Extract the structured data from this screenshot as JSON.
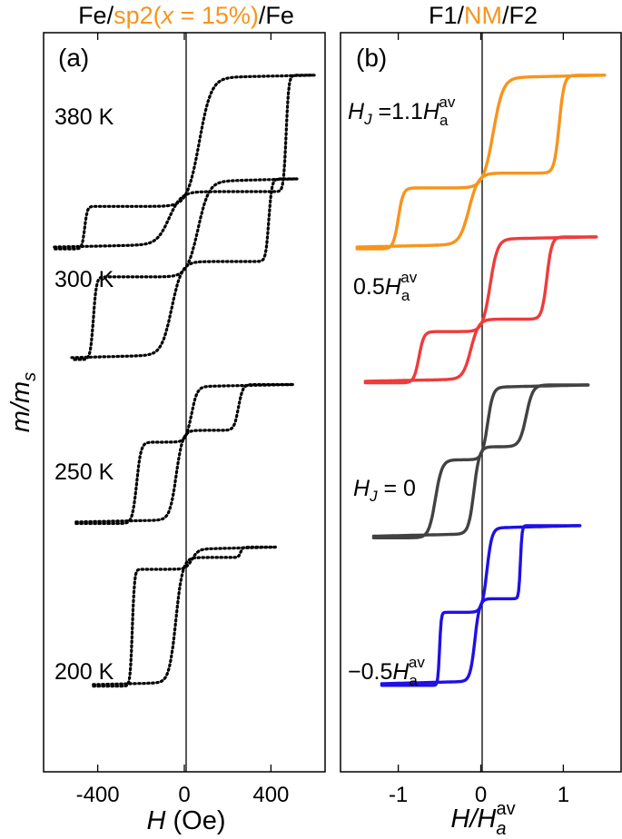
{
  "figure": {
    "ylabel_main": "m/m",
    "ylabel_sub": "s"
  },
  "chart_data": [
    {
      "type": "line",
      "panel_label": "(a)",
      "title_parts": [
        {
          "text": "Fe/",
          "color": "#000000"
        },
        {
          "text": "sp2(",
          "color": "#f7941d"
        },
        {
          "text": "x",
          "color": "#f7941d",
          "italic": true
        },
        {
          "text": " = 15%)",
          "color": "#f7941d"
        },
        {
          "text": "/Fe",
          "color": "#000000"
        }
      ],
      "xlabel_main": "H",
      "xlabel_rest": " (Oe)",
      "xlim": [
        -650,
        650
      ],
      "xticks": [
        -400,
        0,
        400
      ],
      "xtick_labels": [
        "-400",
        "0",
        "400"
      ],
      "grid": false,
      "line_style": "dotted",
      "line_color": "#000000",
      "series": [
        {
          "name": "380 K",
          "Hs": 600,
          "loop": [
            0.05,
            0.3
          ],
          "shift": 0.3,
          "branches": [
            {
              "H": 470,
              "lo": 0.18,
              "hi": 0.82,
              "w": 12
            },
            {
              "H": -460,
              "lo": 0.18,
              "hi": 0.82,
              "w": 12
            }
          ]
        },
        {
          "name": "300 K",
          "Hs": 520,
          "loop": [
            0.19,
            0.45
          ],
          "shift": 0.5,
          "branches": [
            {
              "H": 390,
              "lo": 0.2,
              "hi": 0.8,
              "w": 14
            },
            {
              "H": -420,
              "lo": 0.2,
              "hi": 0.8,
              "w": 14
            }
          ]
        },
        {
          "name": "250 K",
          "Hs": 500,
          "loop": [
            0.47,
            0.67
          ],
          "shift": 0.62,
          "branches": [
            {
              "H": 250,
              "lo": 0.1,
              "hi": 0.9,
              "w": 20
            },
            {
              "H": -220,
              "lo": 0.1,
              "hi": 0.9,
              "w": 20
            }
          ]
        },
        {
          "name": "200 K",
          "Hs": 420,
          "loop": [
            0.69,
            0.89
          ],
          "shift": 0.86,
          "branches": [
            {
              "H": 260,
              "lo": 0.05,
              "hi": 0.95,
              "w": 10
            },
            {
              "H": -240,
              "lo": 0.05,
              "hi": 0.95,
              "w": 10
            }
          ]
        }
      ]
    },
    {
      "type": "line",
      "panel_label": "(b)",
      "title_parts": [
        {
          "text": "F1/",
          "color": "#000000"
        },
        {
          "text": "NM",
          "color": "#f7941d"
        },
        {
          "text": "/F2",
          "color": "#000000"
        }
      ],
      "xlabel_main": "H/H",
      "xlabel_sub": "a",
      "xlabel_sup": "av",
      "xlim": [
        -1.7,
        1.7
      ],
      "xticks": [
        -1,
        0,
        1
      ],
      "xtick_labels": [
        "-1",
        "0",
        "1"
      ],
      "grid": false,
      "line_style": "solid",
      "series": [
        {
          "name": "H_J = 1.1H_a^av",
          "label_parts": [
            "H",
            "J",
            " =1.1",
            "H",
            "a",
            "av"
          ],
          "color": "#f7941d",
          "Hs": 1.5,
          "loop": [
            0.05,
            0.3
          ],
          "shift": 0.4,
          "branches": [
            {
              "H": 0.95,
              "lo": 0.22,
              "hi": 0.78,
              "w": 0.06
            },
            {
              "H": -1.0,
              "lo": 0.22,
              "hi": 0.78,
              "w": 0.06
            }
          ]
        },
        {
          "name": "0.5H_a^av",
          "label_parts": [
            "0.5",
            "H",
            "a",
            "av"
          ],
          "color": "#ef3b3b",
          "Hs": 1.4,
          "loop": [
            0.27,
            0.48
          ],
          "shift": 0.4,
          "branches": [
            {
              "H": 0.8,
              "lo": 0.3,
              "hi": 0.7,
              "w": 0.06
            },
            {
              "H": -0.75,
              "lo": 0.3,
              "hi": 0.7,
              "w": 0.06
            }
          ]
        },
        {
          "name": "H_J = 0",
          "label_parts": [
            "H",
            "J",
            " = 0"
          ],
          "color": "#424242",
          "Hs": 1.3,
          "loop": [
            0.47,
            0.69
          ],
          "shift": 0.55,
          "branches": [
            {
              "H": 0.55,
              "lo": 0.05,
              "hi": 0.95,
              "w": 0.08
            },
            {
              "H": -0.55,
              "lo": 0.05,
              "hi": 0.95,
              "w": 0.08
            }
          ]
        },
        {
          "name": "-0.5H_a^av",
          "label_parts": [
            "−0.5",
            "H",
            "a",
            "av"
          ],
          "color": "#1f10e6",
          "Hs": 1.2,
          "loop": [
            0.66,
            0.89
          ],
          "shift": 0.5,
          "branches": [
            {
              "H": 0.48,
              "lo": 0.04,
              "hi": 0.96,
              "w": 0.02
            },
            {
              "H": -0.5,
              "lo": 0.04,
              "hi": 0.96,
              "w": 0.02
            }
          ]
        }
      ]
    }
  ]
}
